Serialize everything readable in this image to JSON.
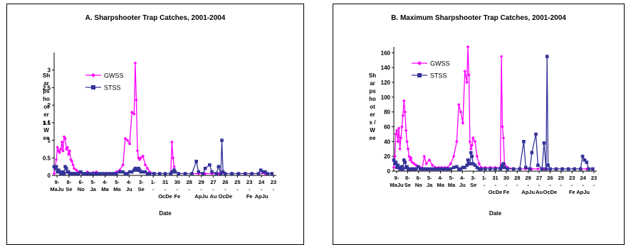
{
  "chart_data": [
    {
      "type": "line",
      "title": "A.  Sharpshooter Trap Catches, 2001-2004",
      "xlabel": "Date",
      "ylabel_lines": [
        "Sh",
        "ar",
        "ps",
        "ho",
        "ot",
        "er",
        "s /",
        "W",
        "ee"
      ],
      "ylim": [
        0,
        3.5
      ],
      "yticks": [
        0,
        0.5,
        1,
        1.5,
        2,
        2.5,
        3
      ],
      "ytick_labels": [
        "0",
        "0.5",
        "1",
        "1.5",
        "2",
        "2.5",
        "3"
      ],
      "xtick_row1": [
        "9-",
        "8-",
        "6-",
        "5-",
        "4-",
        "5-",
        "4-",
        "3-",
        "1-",
        "31",
        "30",
        "28",
        "29",
        "27",
        "26",
        "25",
        "23",
        "24",
        "23"
      ],
      "xtick_row2": [
        "MaJu",
        "Se",
        "No",
        "Ja",
        "Ma",
        "Ma",
        "Ju",
        "Se",
        "-",
        "-",
        "-",
        "-",
        "-",
        "-",
        "-",
        "-",
        "-",
        "-",
        "-"
      ],
      "xtick_row3": [
        "",
        "",
        "",
        "",
        "",
        "",
        "",
        "",
        "",
        "OcDe",
        "Fe",
        "",
        "ApJu",
        "Au",
        "OcDe",
        "",
        "Fe",
        "ApJu",
        ""
      ],
      "legend": [
        {
          "name": "GWSS",
          "color": "#ff00ff",
          "marker": "diamond"
        },
        {
          "name": "STSS",
          "color": "#333399",
          "marker": "square"
        }
      ],
      "series": [
        {
          "name": "GWSS",
          "color": "#ff00ff",
          "x": [
            0,
            1,
            2,
            3,
            4,
            5,
            6,
            7,
            8,
            9,
            10,
            11,
            12,
            13,
            14,
            15,
            16,
            17,
            18,
            20,
            22,
            24,
            26,
            28,
            30,
            32,
            35,
            38,
            41,
            44,
            47,
            50,
            53,
            56,
            59,
            62,
            64,
            66,
            68,
            70,
            72,
            73,
            74,
            75,
            76,
            77,
            78,
            80,
            82,
            84,
            86,
            90,
            95,
            100,
            105,
            106,
            107,
            108,
            109,
            112,
            118,
            124,
            130,
            136,
            142,
            148,
            154,
            160,
            166,
            172,
            178,
            184,
            190,
            196
          ],
          "y": [
            0.05,
            0.25,
            0.45,
            0.8,
            0.7,
            0.65,
            0.75,
            0.95,
            0.7,
            1.1,
            1.05,
            0.75,
            0.8,
            0.6,
            0.7,
            0.45,
            0.4,
            0.3,
            0.2,
            0.15,
            0.1,
            0.08,
            0.05,
            0.05,
            0.1,
            0.05,
            0.08,
            0.1,
            0.05,
            0.05,
            0.05,
            0.05,
            0.05,
            0.1,
            0.15,
            0.3,
            1.05,
            1.0,
            0.9,
            1.8,
            1.75,
            3.2,
            2.15,
            0.7,
            0.5,
            0.45,
            0.5,
            0.55,
            0.3,
            0.2,
            0.1,
            0.05,
            0.05,
            0.05,
            0.05,
            0.95,
            0.5,
            0.25,
            0.1,
            0.05,
            0.05,
            0.05,
            0.05,
            0.05,
            0.05,
            0.05,
            0.05,
            0.05,
            0.05,
            0.05,
            0.05,
            0.05,
            0.05,
            0.05
          ]
        },
        {
          "name": "STSS",
          "color": "#333399",
          "x": [
            0,
            1,
            2,
            3,
            4,
            5,
            6,
            7,
            8,
            9,
            10,
            11,
            12,
            13,
            14,
            15,
            16,
            17,
            18,
            20,
            22,
            24,
            26,
            28,
            30,
            32,
            35,
            38,
            41,
            44,
            47,
            50,
            53,
            56,
            59,
            62,
            64,
            66,
            68,
            70,
            72,
            73,
            74,
            75,
            76,
            77,
            78,
            80,
            82,
            84,
            86,
            90,
            95,
            100,
            105,
            106,
            107,
            108,
            109,
            112,
            118,
            124,
            128,
            130,
            134,
            136,
            140,
            142,
            146,
            148,
            150,
            151,
            152,
            154,
            160,
            166,
            172,
            178,
            184,
            186,
            188,
            190,
            192,
            196
          ],
          "y": [
            0.25,
            0.2,
            0.25,
            0.1,
            0.15,
            0.1,
            0.05,
            0.05,
            0.1,
            0.05,
            0.25,
            0.2,
            0.1,
            0.1,
            0.05,
            0.05,
            0.05,
            0.05,
            0.05,
            0.05,
            0.05,
            0.1,
            0.05,
            0.05,
            0.05,
            0.05,
            0.05,
            0.05,
            0.05,
            0.05,
            0.05,
            0.05,
            0.05,
            0.05,
            0.1,
            0.1,
            0.05,
            0.05,
            0.1,
            0.1,
            0.15,
            0.2,
            0.15,
            0.15,
            0.2,
            0.15,
            0.1,
            0.1,
            0.1,
            0.05,
            0.05,
            0.05,
            0.05,
            0.05,
            0.05,
            0.1,
            0.1,
            0.15,
            0.1,
            0.05,
            0.05,
            0.05,
            0.4,
            0.1,
            0.05,
            0.2,
            0.3,
            0.1,
            0.05,
            0.25,
            0.05,
            1.0,
            0.1,
            0.05,
            0.05,
            0.05,
            0.05,
            0.05,
            0.05,
            0.15,
            0.1,
            0.1,
            0.05,
            0.05
          ]
        }
      ]
    },
    {
      "type": "line",
      "title": "B.  Maximum Sharpshooter Trap Catches, 2001-2004",
      "xlabel": "Date",
      "ylabel_lines": [
        "Sh",
        "ar",
        "ps",
        "ho",
        "ot",
        "er",
        "s /",
        "W",
        "ee"
      ],
      "ylim": [
        0,
        168
      ],
      "yticks": [
        0,
        20,
        40,
        60,
        80,
        100,
        120,
        140,
        160
      ],
      "ytick_labels": [
        "0",
        "20",
        "40",
        "60",
        "80",
        "100",
        "120",
        "140",
        "160"
      ],
      "xtick_row1": [
        "9-",
        "8-",
        "6-",
        "5-",
        "4-",
        "5-",
        "4-",
        "3-",
        "1-",
        "31",
        "30",
        "28",
        "29",
        "27",
        "26",
        "25",
        "23",
        "24",
        "23"
      ],
      "xtick_row2": [
        "MaJu",
        "Se",
        "No",
        "Ja",
        "Ma",
        "Ma",
        "Ju",
        "Se",
        "-",
        "-",
        "-",
        "-",
        "-",
        "-",
        "-",
        "-",
        "-",
        "-",
        "-"
      ],
      "xtick_row3": [
        "",
        "",
        "",
        "",
        "",
        "",
        "",
        "",
        "",
        "OcDe",
        "Fe",
        "",
        "ApJu",
        "Au",
        "OcDe",
        "",
        "Fe",
        "ApJu",
        ""
      ],
      "legend": [
        {
          "name": "GWSS",
          "color": "#ff00ff",
          "marker": "diamond"
        },
        {
          "name": "STSS",
          "color": "#333399",
          "marker": "square"
        }
      ],
      "series": [
        {
          "name": "GWSS",
          "color": "#ff00ff",
          "x": [
            0,
            1,
            2,
            3,
            4,
            5,
            6,
            7,
            8,
            9,
            10,
            11,
            12,
            13,
            14,
            15,
            16,
            17,
            18,
            20,
            22,
            24,
            26,
            28,
            30,
            32,
            35,
            38,
            41,
            44,
            47,
            50,
            53,
            56,
            59,
            62,
            64,
            66,
            68,
            70,
            72,
            73,
            74,
            75,
            76,
            77,
            78,
            80,
            82,
            84,
            86,
            90,
            95,
            100,
            105,
            106,
            107,
            108,
            109,
            112,
            118,
            124,
            130,
            136,
            142,
            148,
            154,
            160,
            166,
            172,
            178,
            184,
            190,
            196
          ],
          "y": [
            5,
            20,
            50,
            55,
            40,
            58,
            30,
            45,
            60,
            75,
            95,
            80,
            55,
            40,
            30,
            20,
            15,
            18,
            12,
            10,
            8,
            6,
            5,
            4,
            20,
            10,
            15,
            8,
            5,
            5,
            5,
            5,
            5,
            10,
            20,
            40,
            90,
            80,
            65,
            135,
            120,
            168,
            130,
            40,
            30,
            35,
            45,
            40,
            20,
            10,
            5,
            5,
            5,
            5,
            5,
            155,
            60,
            45,
            10,
            5,
            3,
            3,
            3,
            3,
            3,
            3,
            3,
            3,
            3,
            3,
            3,
            3,
            3,
            3
          ]
        },
        {
          "name": "STSS",
          "color": "#333399",
          "x": [
            0,
            1,
            2,
            3,
            4,
            5,
            6,
            7,
            8,
            9,
            10,
            11,
            12,
            13,
            14,
            15,
            16,
            17,
            18,
            20,
            22,
            24,
            26,
            28,
            30,
            32,
            35,
            38,
            41,
            44,
            47,
            50,
            53,
            56,
            59,
            62,
            64,
            66,
            68,
            70,
            72,
            73,
            74,
            75,
            76,
            77,
            78,
            80,
            82,
            84,
            86,
            90,
            95,
            100,
            105,
            106,
            107,
            108,
            109,
            112,
            118,
            124,
            128,
            130,
            134,
            136,
            140,
            142,
            146,
            148,
            150,
            151,
            152,
            154,
            160,
            166,
            172,
            178,
            184,
            186,
            188,
            190,
            192,
            196
          ],
          "y": [
            15,
            10,
            12,
            5,
            8,
            5,
            3,
            4,
            6,
            3,
            15,
            12,
            5,
            6,
            3,
            3,
            3,
            3,
            3,
            3,
            3,
            6,
            3,
            3,
            3,
            3,
            3,
            3,
            3,
            3,
            3,
            3,
            3,
            3,
            5,
            6,
            3,
            3,
            5,
            5,
            8,
            15,
            10,
            10,
            25,
            20,
            10,
            8,
            5,
            3,
            3,
            3,
            3,
            3,
            3,
            5,
            8,
            10,
            5,
            3,
            3,
            3,
            40,
            5,
            3,
            25,
            50,
            8,
            3,
            38,
            3,
            155,
            8,
            3,
            3,
            3,
            3,
            3,
            3,
            20,
            15,
            12,
            3,
            3
          ]
        }
      ]
    }
  ]
}
